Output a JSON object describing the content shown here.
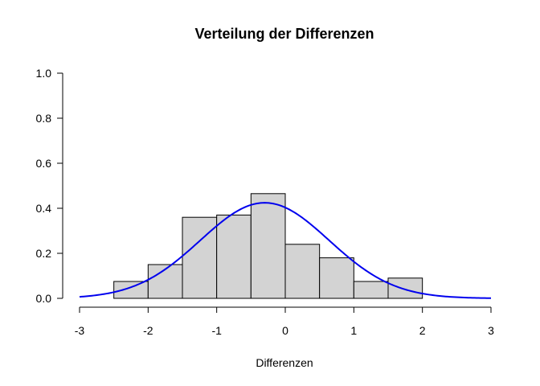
{
  "chart_data": {
    "type": "bar",
    "title": "Verteilung der Differenzen",
    "xlabel": "Differenzen",
    "ylabel": "",
    "xlim": [
      -3,
      3
    ],
    "ylim": [
      0,
      1
    ],
    "x_ticks": [
      "-3",
      "-2",
      "-1",
      "0",
      "1",
      "2",
      "3"
    ],
    "y_ticks": [
      "0.0",
      "0.2",
      "0.4",
      "0.6",
      "0.8",
      "1.0"
    ],
    "grid": false,
    "legend": "none",
    "bin_edges": [
      -2.5,
      -2.0,
      -1.5,
      -1.0,
      -0.5,
      0.0,
      0.5,
      1.0,
      1.5,
      2.0
    ],
    "values": [
      0.075,
      0.15,
      0.36,
      0.37,
      0.465,
      0.24,
      0.18,
      0.075,
      0.09
    ],
    "bar_color": "#d3d3d3",
    "curve": {
      "type": "normal-density",
      "mean": -0.3,
      "sd": 0.94,
      "x_range": [
        -3,
        3
      ],
      "color": "#0000ee"
    }
  }
}
